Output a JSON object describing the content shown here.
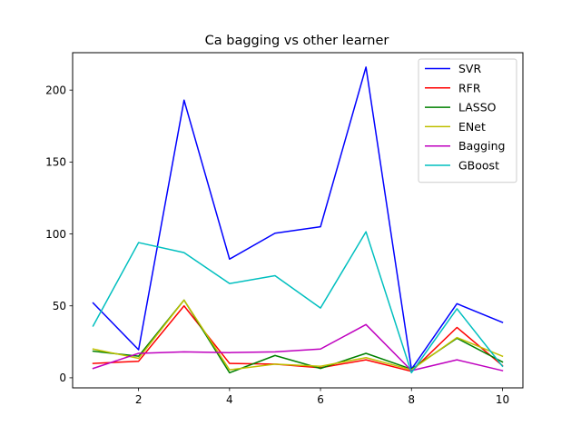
{
  "chart_data": {
    "type": "line",
    "title": "Ca bagging vs other learner",
    "xlabel": "",
    "ylabel": "",
    "x": [
      1,
      2,
      3,
      4,
      5,
      6,
      7,
      8,
      9,
      10
    ],
    "xlim": [
      0.55,
      10.45
    ],
    "ylim": [
      -7,
      226
    ],
    "xticks": [
      2,
      4,
      6,
      8,
      10
    ],
    "yticks": [
      0,
      50,
      100,
      150,
      200
    ],
    "grid": false,
    "legend_position": "top-right",
    "series": [
      {
        "name": "SVR",
        "color": "#0000ff",
        "values": [
          52,
          19.5,
          193,
          82.5,
          100.5,
          105,
          216,
          6,
          51.5,
          38.5
        ]
      },
      {
        "name": "RFR",
        "color": "#ff0000",
        "values": [
          10,
          11.5,
          50,
          10,
          9.5,
          7,
          12.5,
          4.5,
          35,
          8.5
        ]
      },
      {
        "name": "LASSO",
        "color": "#008000",
        "values": [
          18.5,
          15,
          54,
          3.5,
          15.5,
          6.5,
          17,
          6,
          27.5,
          11
        ]
      },
      {
        "name": "ENet",
        "color": "#bfbf00",
        "values": [
          20,
          13.5,
          54,
          5.5,
          9.5,
          8,
          14,
          5.5,
          28,
          15
        ]
      },
      {
        "name": "Bagging",
        "color": "#bf00bf",
        "values": [
          6.5,
          17,
          18,
          17.5,
          18,
          20,
          37,
          5,
          12.5,
          5
        ]
      },
      {
        "name": "GBoost",
        "color": "#00bfbf",
        "values": [
          36,
          94,
          87,
          65.5,
          71,
          48.5,
          101.5,
          3.5,
          48,
          8
        ]
      }
    ]
  }
}
